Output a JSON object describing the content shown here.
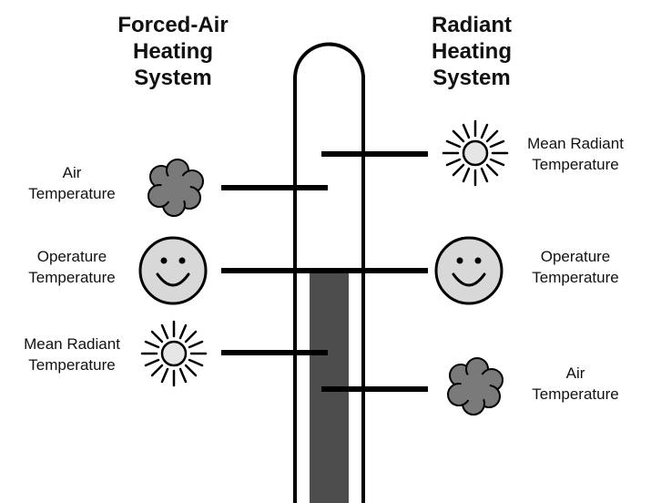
{
  "left_system": {
    "title_lines": [
      "Forced-Air",
      "Heating",
      "System"
    ],
    "labels": {
      "air": [
        "Air",
        "Temperature"
      ],
      "operature": [
        "Operature",
        "Temperature"
      ],
      "mean_radiant": [
        "Mean Radiant",
        "Temperature"
      ]
    }
  },
  "right_system": {
    "title_lines": [
      "Radiant",
      "Heating",
      "System"
    ],
    "labels": {
      "mean_radiant": [
        "Mean Radiant",
        "Temperature"
      ],
      "operature": [
        "Operature",
        "Temperature"
      ],
      "air": [
        "Air",
        "Temperature"
      ]
    }
  },
  "colors": {
    "thermometer_fill": "#4d4d4d",
    "cloud": "#7a7a7a",
    "face": "#d8d8d8",
    "sun_center": "#e6e6e6",
    "outline": "#000000"
  },
  "icons": {
    "cloud": "cloud-icon",
    "face": "smiley-face-icon",
    "sun": "sun-icon"
  }
}
